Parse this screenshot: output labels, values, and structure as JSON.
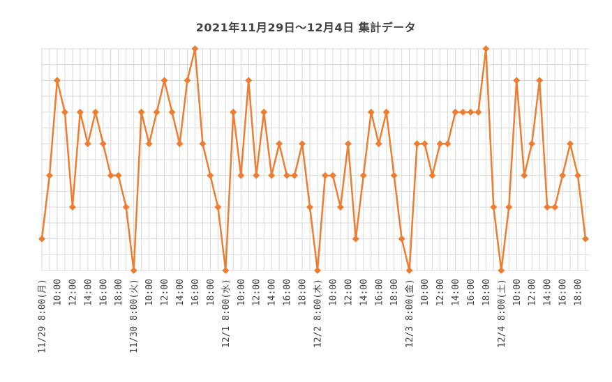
{
  "chart_data": {
    "type": "line",
    "title": "2021年11月29日～12月4日 集計データ",
    "xlabel": "",
    "ylabel": "",
    "ylim": [
      0,
      7
    ],
    "grid": true,
    "legend": "none",
    "series": [
      {
        "color": "#ED7D31",
        "values": [
          1,
          3,
          6,
          5,
          2,
          5,
          4,
          5,
          4,
          3,
          3,
          2,
          0,
          5,
          4,
          5,
          6,
          5,
          4,
          6,
          7,
          4,
          3,
          2,
          0,
          5,
          3,
          6,
          3,
          5,
          3,
          4,
          3,
          3,
          4,
          2,
          0,
          3,
          3,
          2,
          4,
          1,
          3,
          5,
          4,
          5,
          3,
          1,
          0,
          4,
          4,
          3,
          4,
          4,
          5,
          5,
          5,
          5,
          7,
          2,
          0,
          2,
          6,
          3,
          4,
          6,
          2,
          2,
          3,
          4,
          3,
          1
        ]
      }
    ],
    "x_tick_labels": [
      {
        "index": 0,
        "text": "11/29 8:00(月)"
      },
      {
        "index": 2,
        "text": "10:00"
      },
      {
        "index": 4,
        "text": "12:00"
      },
      {
        "index": 6,
        "text": "14:00"
      },
      {
        "index": 8,
        "text": "16:00"
      },
      {
        "index": 10,
        "text": "18:00"
      },
      {
        "index": 12,
        "text": "11/30 8:00(火)"
      },
      {
        "index": 14,
        "text": "10:00"
      },
      {
        "index": 16,
        "text": "12:00"
      },
      {
        "index": 18,
        "text": "14:00"
      },
      {
        "index": 20,
        "text": "16:00"
      },
      {
        "index": 22,
        "text": "18:00"
      },
      {
        "index": 24,
        "text": "12/1 8:00(水)"
      },
      {
        "index": 26,
        "text": "10:00"
      },
      {
        "index": 28,
        "text": "12:00"
      },
      {
        "index": 30,
        "text": "14:00"
      },
      {
        "index": 32,
        "text": "16:00"
      },
      {
        "index": 34,
        "text": "18:00"
      },
      {
        "index": 36,
        "text": "12/2 8:00(木)"
      },
      {
        "index": 38,
        "text": "10:00"
      },
      {
        "index": 40,
        "text": "12:00"
      },
      {
        "index": 42,
        "text": "14:00"
      },
      {
        "index": 44,
        "text": "16:00"
      },
      {
        "index": 46,
        "text": "18:00"
      },
      {
        "index": 48,
        "text": "12/3 8:00(金)"
      },
      {
        "index": 50,
        "text": "10:00"
      },
      {
        "index": 52,
        "text": "12:00"
      },
      {
        "index": 54,
        "text": "14:00"
      },
      {
        "index": 56,
        "text": "16:00"
      },
      {
        "index": 58,
        "text": "18:00"
      },
      {
        "index": 60,
        "text": "12/4 8:00(土)"
      },
      {
        "index": 62,
        "text": "10:00"
      },
      {
        "index": 64,
        "text": "12:00"
      },
      {
        "index": 66,
        "text": "14:00"
      },
      {
        "index": 68,
        "text": "16:00"
      },
      {
        "index": 70,
        "text": "18:00"
      }
    ]
  }
}
